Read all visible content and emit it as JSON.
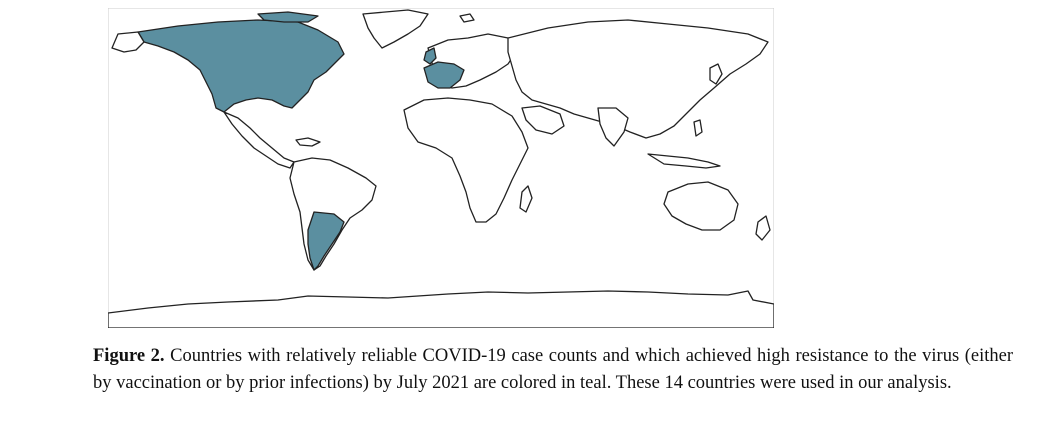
{
  "figure": {
    "label": "Figure 2.",
    "caption": "Countries with relatively reliable COVID-19 case counts and which achieved high resistance to the virus (either by vaccination or by prior infections) by July 2021 are colored in teal. These 14 countries were used in our analysis."
  },
  "map": {
    "projection": "equirectangular",
    "highlight_color": "#5b8fa0",
    "land_color": "#ffffff",
    "border_color": "#222222",
    "highlighted_regions": [
      "Canada",
      "United States",
      "Argentina",
      "Uruguay",
      "Western Europe"
    ]
  }
}
